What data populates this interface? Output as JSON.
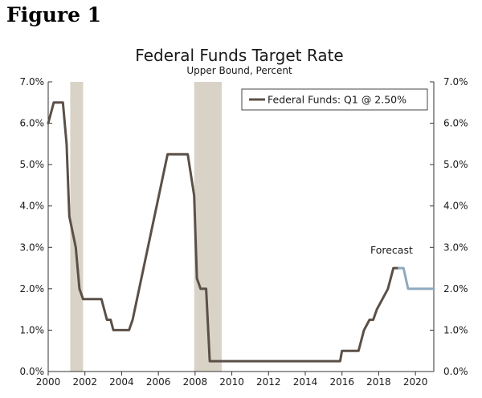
{
  "figure_label": "Figure 1",
  "chart_data": {
    "type": "line",
    "title": "Federal Funds Target Rate",
    "subtitle": "Upper Bound, Percent",
    "xlim": [
      2000,
      2021
    ],
    "ylim": [
      0,
      7
    ],
    "x_ticks": [
      {
        "value": 2000,
        "label": "2000"
      },
      {
        "value": 2002,
        "label": "2002"
      },
      {
        "value": 2004,
        "label": "2004"
      },
      {
        "value": 2006,
        "label": "2006"
      },
      {
        "value": 2008,
        "label": "2008"
      },
      {
        "value": 2010,
        "label": "2010"
      },
      {
        "value": 2012,
        "label": "2012"
      },
      {
        "value": 2014,
        "label": "2014"
      },
      {
        "value": 2016,
        "label": "2016"
      },
      {
        "value": 2018,
        "label": "2018"
      },
      {
        "value": 2020,
        "label": "2020"
      }
    ],
    "y_ticks": [
      {
        "value": 0,
        "label": "0.0%"
      },
      {
        "value": 1,
        "label": "1.0%"
      },
      {
        "value": 2,
        "label": "2.0%"
      },
      {
        "value": 3,
        "label": "3.0%"
      },
      {
        "value": 4,
        "label": "4.0%"
      },
      {
        "value": 5,
        "label": "5.0%"
      },
      {
        "value": 6,
        "label": "6.0%"
      },
      {
        "value": 7,
        "label": "7.0%"
      }
    ],
    "recessions": [
      {
        "start": 2001.2,
        "end": 2001.9
      },
      {
        "start": 2007.95,
        "end": 2009.45
      }
    ],
    "series": [
      {
        "name": "Federal Funds: Q1 @ 2.50%",
        "role": "actual",
        "color": "#5b5048",
        "x": [
          2000.0,
          2000.3,
          2000.8,
          2001.0,
          2001.15,
          2001.5,
          2001.7,
          2001.9,
          2002.9,
          2003.2,
          2003.4,
          2003.55,
          2004.4,
          2004.6,
          2006.5,
          2007.6,
          2007.95,
          2008.1,
          2008.3,
          2008.6,
          2008.8,
          2015.9,
          2016.0,
          2016.9,
          2017.2,
          2017.5,
          2017.7,
          2017.9,
          2018.2,
          2018.5,
          2018.8,
          2019.1
        ],
        "y": [
          6.0,
          6.5,
          6.5,
          5.5,
          3.75,
          3.0,
          2.0,
          1.75,
          1.75,
          1.25,
          1.25,
          1.0,
          1.0,
          1.25,
          5.25,
          5.25,
          4.25,
          2.25,
          2.0,
          2.0,
          0.25,
          0.25,
          0.5,
          0.5,
          1.0,
          1.25,
          1.25,
          1.5,
          1.75,
          2.0,
          2.5,
          2.5
        ]
      },
      {
        "name": "Forecast",
        "role": "forecast",
        "color": "#8ea9bf",
        "x": [
          2019.1,
          2019.35,
          2019.6,
          2021.0
        ],
        "y": [
          2.5,
          2.5,
          2.0,
          2.0
        ]
      }
    ],
    "legend": {
      "position": "top-right",
      "entry": "Federal Funds: Q1 @ 2.50%"
    },
    "annotations": [
      {
        "text": "Forecast",
        "x": 2018.7,
        "y": 2.85
      }
    ],
    "colors": {
      "recession": "#d9d3c7",
      "axis": "#333333"
    }
  }
}
